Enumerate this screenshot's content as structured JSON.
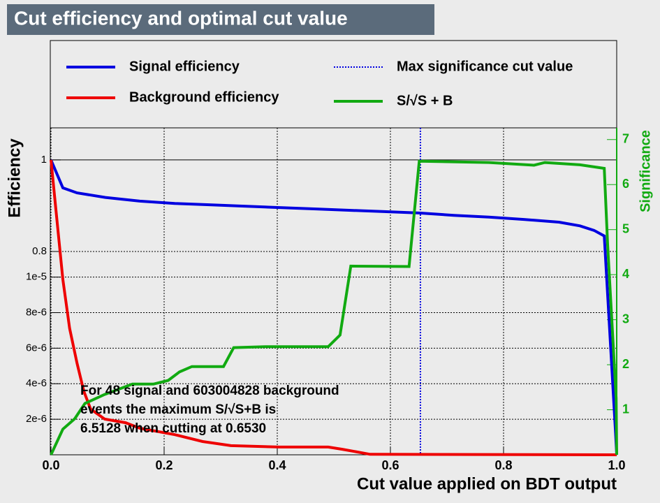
{
  "chart_data": {
    "type": "line",
    "title": "Cut efficiency and optimal cut value",
    "xlabel": "Cut value applied on BDT output",
    "ylabel": "Efficiency",
    "y2label": "Significance",
    "xlim": [
      0,
      1
    ],
    "xticks": [
      {
        "value": 0,
        "label": "0.0"
      },
      0.2,
      0.4,
      0.6,
      0.8,
      {
        "value": 1,
        "label": "1.0"
      }
    ],
    "ylim": [
      0.356,
      1.07
    ],
    "yticks": [
      0.8,
      1
    ],
    "y3lim": [
      0,
      1.84e-05
    ],
    "y3ticks": [
      {
        "value": 2e-06,
        "label": "2e-6"
      },
      {
        "value": 4e-06,
        "label": "4e-6"
      },
      {
        "value": 6e-06,
        "label": "6e-6"
      },
      {
        "value": 8e-06,
        "label": "8e-6"
      },
      {
        "value": 1e-05,
        "label": "1e-5"
      }
    ],
    "y2lim": [
      0,
      7.26
    ],
    "y2ticks": [
      1,
      2,
      3,
      4,
      5,
      6,
      7
    ],
    "grid": true,
    "series": [
      {
        "name": "Signal efficiency",
        "color": "#0000e0",
        "x": [
          0,
          0.021,
          0.046,
          0.096,
          0.157,
          0.219,
          0.28,
          0.342,
          0.404,
          0.465,
          0.527,
          0.589,
          0.651,
          0.712,
          0.774,
          0.836,
          0.898,
          0.935,
          0.96,
          0.978,
          0.998,
          1
        ],
        "values": [
          1,
          0.939,
          0.928,
          0.918,
          0.91,
          0.905,
          0.902,
          0.899,
          0.896,
          0.893,
          0.89,
          0.887,
          0.884,
          0.879,
          0.875,
          0.87,
          0.864,
          0.856,
          0.846,
          0.834,
          0.403,
          0.357
        ]
      },
      {
        "name": "Background efficiency",
        "color": "#ee0000",
        "x": [
          0,
          0.0086,
          0.021,
          0.033,
          0.046,
          0.058,
          0.07,
          0.095,
          0.132,
          0.157,
          0.219,
          0.268,
          0.318,
          0.404,
          0.49,
          0.515,
          0.564,
          1
        ],
        "values": [
          1,
          0.892,
          0.739,
          0.632,
          0.556,
          0.495,
          0.456,
          0.434,
          0.426,
          0.414,
          0.4,
          0.385,
          0.376,
          0.373,
          0.373,
          0.368,
          0.357,
          0.356
        ]
      },
      {
        "name": "S/√S + B",
        "color": "#11aa11",
        "axis": "y2",
        "x": [
          0,
          0.021,
          0.042,
          0.06,
          0.095,
          0.144,
          0.181,
          0.207,
          0.227,
          0.249,
          0.305,
          0.323,
          0.379,
          0.49,
          0.511,
          0.53,
          0.633,
          0.651,
          0.774,
          0.854,
          0.873,
          0.935,
          0.978,
          0.984,
          0.999,
          1
        ],
        "values": [
          0,
          0.57,
          0.8,
          1.14,
          1.34,
          1.57,
          1.57,
          1.65,
          1.84,
          1.96,
          1.96,
          2.38,
          2.4,
          2.4,
          2.66,
          4.19,
          4.18,
          6.52,
          6.49,
          6.43,
          6.49,
          6.44,
          6.36,
          4.67,
          1.26,
          0
        ]
      }
    ],
    "markers": [
      {
        "name": "Max significance cut value",
        "color": "#0000e0",
        "x": 0.653
      }
    ],
    "annotation": [
      "For 48 signal and 603004828 background",
      "events the maximum S/√S+B is",
      "6.5128 when cutting at 0.6530"
    ]
  }
}
